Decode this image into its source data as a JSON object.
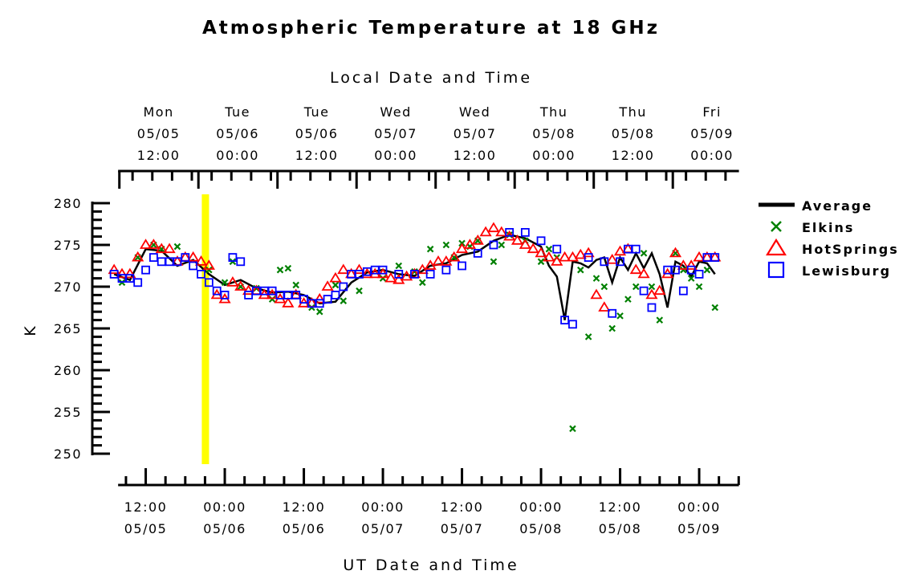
{
  "chart_data": {
    "type": "scatter",
    "title": "Atmospheric Temperature at 18 GHz",
    "top_axis_label": "Local Date and Time",
    "xlabel": "UT Date and Time",
    "ylabel": "K",
    "ylim": [
      250,
      280
    ],
    "yticks": [
      250,
      255,
      260,
      265,
      270,
      275,
      280
    ],
    "xlim": [
      0.3,
      4.15
    ],
    "x_unit": "days since 05/05 00:00 UT",
    "bottom_ticks": [
      {
        "x": 0.5,
        "line1": "12:00",
        "line2": "05/05"
      },
      {
        "x": 1.0,
        "line1": "00:00",
        "line2": "05/06"
      },
      {
        "x": 1.5,
        "line1": "12:00",
        "line2": "05/06"
      },
      {
        "x": 2.0,
        "line1": "00:00",
        "line2": "05/07"
      },
      {
        "x": 2.5,
        "line1": "12:00",
        "line2": "05/07"
      },
      {
        "x": 3.0,
        "line1": "00:00",
        "line2": "05/08"
      },
      {
        "x": 3.5,
        "line1": "12:00",
        "line2": "05/08"
      },
      {
        "x": 4.0,
        "line1": "00:00",
        "line2": "05/09"
      }
    ],
    "top_ticks": [
      {
        "x": 0.667,
        "day": "Mon",
        "date": "05/05",
        "time": "12:00"
      },
      {
        "x": 1.167,
        "day": "Tue",
        "date": "05/06",
        "time": "00:00"
      },
      {
        "x": 1.667,
        "day": "Tue",
        "date": "05/06",
        "time": "12:00"
      },
      {
        "x": 2.167,
        "day": "Wed",
        "date": "05/07",
        "time": "00:00"
      },
      {
        "x": 2.667,
        "day": "Wed",
        "date": "05/07",
        "time": "12:00"
      },
      {
        "x": 3.167,
        "day": "Thu",
        "date": "05/08",
        "time": "00:00"
      },
      {
        "x": 3.667,
        "day": "Thu",
        "date": "05/08",
        "time": "12:00"
      },
      {
        "x": 4.167,
        "day": "Fri",
        "date": "05/09",
        "time": "00:00"
      }
    ],
    "highlight_x": 0.875,
    "highlight_color": "#ffff00",
    "legend_position": "right",
    "series": [
      {
        "name": "Average",
        "type": "line",
        "color": "#000000",
        "x": [
          0.3,
          0.4,
          0.5,
          0.6,
          0.7,
          0.8,
          0.9,
          1.0,
          1.1,
          1.2,
          1.3,
          1.4,
          1.5,
          1.6,
          1.7,
          1.8,
          1.9,
          2.0,
          2.1,
          2.2,
          2.3,
          2.4,
          2.5,
          2.6,
          2.7,
          2.8,
          2.9,
          3.0,
          3.05,
          3.1,
          3.15,
          3.2,
          3.25,
          3.3,
          3.35,
          3.4,
          3.45,
          3.5,
          3.55,
          3.6,
          3.65,
          3.7,
          3.75,
          3.8,
          3.85,
          3.9,
          3.95,
          4.0,
          4.05,
          4.1
        ],
        "y": [
          271.5,
          270.8,
          274.5,
          274.3,
          272.5,
          273.2,
          271.5,
          270.2,
          270.8,
          269.8,
          269.3,
          269.4,
          269.0,
          268.0,
          268.2,
          270.5,
          271.7,
          272.0,
          271.5,
          271.3,
          272.5,
          272.8,
          273.8,
          274.2,
          275.5,
          276.2,
          275.8,
          274.8,
          272.5,
          271.2,
          266.0,
          273.0,
          272.8,
          272.3,
          273.2,
          273.5,
          270.5,
          273.5,
          272.0,
          274.0,
          272.2,
          274.0,
          271.5,
          267.5,
          273.0,
          272.5,
          271.2,
          273.0,
          272.8,
          271.5
        ]
      },
      {
        "name": "Elkins",
        "type": "scatter",
        "marker": "x",
        "color": "#008000",
        "x": [
          0.35,
          0.45,
          0.55,
          0.6,
          0.7,
          0.9,
          1.0,
          1.05,
          1.1,
          1.2,
          1.3,
          1.35,
          1.4,
          1.45,
          1.55,
          1.6,
          1.7,
          1.75,
          1.85,
          2.0,
          2.1,
          2.2,
          2.25,
          2.3,
          2.4,
          2.45,
          2.5,
          2.55,
          2.6,
          2.7,
          2.75,
          2.8,
          2.9,
          3.0,
          3.05,
          3.1,
          3.2,
          3.25,
          3.3,
          3.35,
          3.4,
          3.45,
          3.5,
          3.55,
          3.6,
          3.65,
          3.7,
          3.75,
          3.85,
          3.9,
          3.95,
          4.0,
          4.05,
          4.1
        ],
        "y": [
          270.5,
          273.5,
          275.0,
          274.5,
          274.8,
          272.0,
          270.5,
          273.0,
          270.0,
          269.8,
          268.5,
          272.0,
          272.2,
          270.2,
          267.5,
          267.0,
          270.2,
          268.3,
          269.5,
          271.0,
          272.5,
          271.8,
          270.5,
          274.5,
          275.0,
          273.5,
          275.2,
          274.8,
          275.5,
          273.0,
          275.0,
          276.2,
          275.5,
          273.0,
          274.5,
          273.5,
          253.0,
          272.0,
          264.0,
          271.0,
          270.0,
          265.0,
          266.5,
          268.5,
          270.0,
          274.0,
          270.0,
          266.0,
          274.0,
          272.0,
          271.0,
          270.0,
          272.0,
          267.5
        ]
      },
      {
        "name": "HotSprings",
        "type": "scatter",
        "marker": "triangle",
        "color": "#ff0000",
        "x": [
          0.3,
          0.35,
          0.4,
          0.45,
          0.5,
          0.55,
          0.6,
          0.65,
          0.7,
          0.75,
          0.8,
          0.85,
          0.9,
          0.95,
          1.0,
          1.05,
          1.1,
          1.15,
          1.2,
          1.25,
          1.3,
          1.35,
          1.4,
          1.45,
          1.5,
          1.55,
          1.6,
          1.65,
          1.7,
          1.75,
          1.8,
          1.85,
          1.9,
          1.95,
          2.0,
          2.05,
          2.1,
          2.15,
          2.2,
          2.25,
          2.3,
          2.35,
          2.4,
          2.45,
          2.5,
          2.55,
          2.6,
          2.65,
          2.7,
          2.75,
          2.8,
          2.85,
          2.9,
          2.95,
          3.0,
          3.05,
          3.1,
          3.15,
          3.2,
          3.25,
          3.3,
          3.35,
          3.4,
          3.45,
          3.5,
          3.55,
          3.6,
          3.65,
          3.7,
          3.75,
          3.8,
          3.85,
          3.9,
          3.95,
          4.0,
          4.05,
          4.1
        ],
        "y": [
          272,
          271.5,
          271.5,
          273.5,
          275,
          275,
          274.5,
          274.5,
          273,
          273.5,
          273.5,
          273,
          272.5,
          269,
          268.5,
          270.5,
          270,
          269.5,
          269.5,
          269,
          269,
          268.5,
          268,
          269,
          268,
          268,
          268.5,
          270,
          271,
          272,
          271.5,
          272,
          271.5,
          271.5,
          271.5,
          271,
          270.8,
          271.2,
          271.5,
          272,
          272.5,
          273,
          273,
          273.5,
          274.5,
          275,
          275.5,
          276.5,
          277,
          276.5,
          276,
          275.5,
          275,
          274.5,
          274,
          273.5,
          273,
          273.5,
          273.5,
          273.8,
          274,
          269,
          267.5,
          273.2,
          274.2,
          274.5,
          272,
          271.5,
          269,
          269.5,
          271.5,
          274,
          272.5,
          272.5,
          273.5,
          273.5,
          273.5
        ]
      },
      {
        "name": "Lewisburg",
        "type": "scatter",
        "marker": "square",
        "color": "#0000ff",
        "x": [
          0.3,
          0.35,
          0.4,
          0.45,
          0.5,
          0.55,
          0.6,
          0.65,
          0.7,
          0.75,
          0.8,
          0.85,
          0.9,
          0.95,
          1.0,
          1.05,
          1.1,
          1.15,
          1.2,
          1.25,
          1.3,
          1.35,
          1.4,
          1.45,
          1.5,
          1.55,
          1.6,
          1.65,
          1.7,
          1.75,
          1.8,
          1.85,
          1.9,
          1.95,
          2.0,
          2.1,
          2.2,
          2.3,
          2.4,
          2.5,
          2.6,
          2.7,
          2.8,
          2.9,
          3.0,
          3.1,
          3.15,
          3.2,
          3.3,
          3.4,
          3.45,
          3.5,
          3.55,
          3.6,
          3.65,
          3.7,
          3.8,
          3.85,
          3.9,
          3.95,
          4.0,
          4.05,
          4.1
        ],
        "y": [
          271.5,
          271,
          271,
          270.5,
          272,
          273.5,
          273,
          273,
          273,
          273.5,
          272.5,
          271.5,
          270.5,
          269.5,
          269,
          273.5,
          273,
          269,
          269.5,
          269.5,
          269.5,
          269,
          269,
          269,
          268.5,
          268,
          268,
          268.5,
          269,
          270,
          271.5,
          271.5,
          271.8,
          272,
          272,
          271.5,
          271.5,
          271.5,
          272,
          272.5,
          274,
          275,
          276.5,
          276.5,
          275.5,
          274.5,
          266,
          265.5,
          273.5,
          273,
          266.8,
          273,
          274.5,
          274.5,
          269.5,
          267.5,
          272,
          272,
          269.5,
          272,
          271.5,
          273.5,
          273.5
        ]
      }
    ]
  }
}
